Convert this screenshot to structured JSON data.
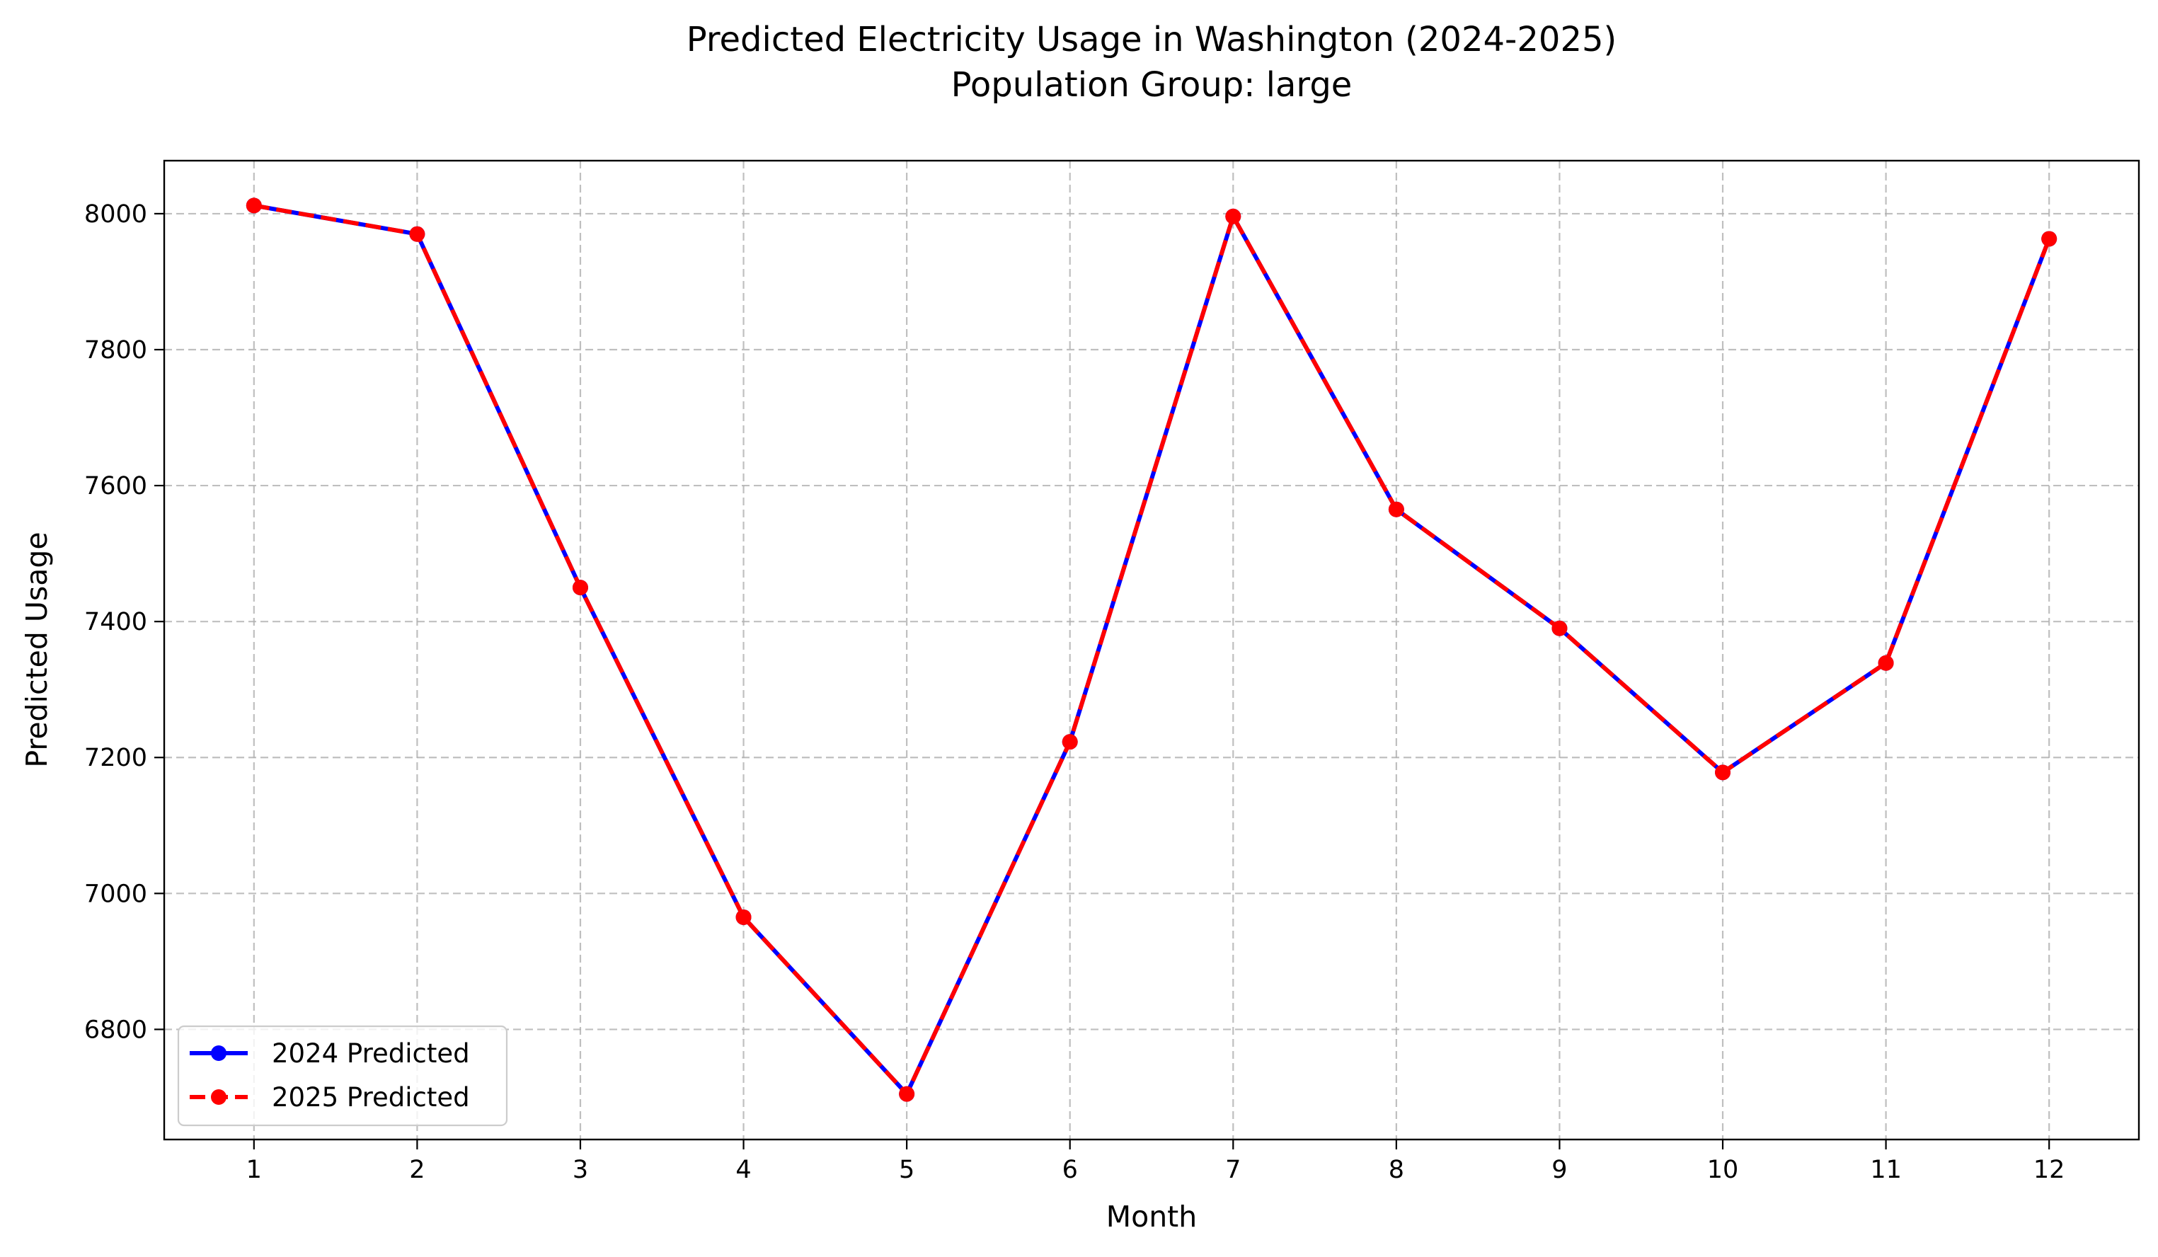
{
  "chart_data": {
    "type": "line",
    "title": [
      "Predicted Electricity Usage in Washington (2024-2025)",
      "Population Group: large"
    ],
    "xlabel": "Month",
    "ylabel": "Predicted Usage",
    "x": [
      1,
      2,
      3,
      4,
      5,
      6,
      7,
      8,
      9,
      10,
      11,
      12
    ],
    "xlim": [
      0.45,
      12.55
    ],
    "ylim": [
      6638,
      8078
    ],
    "yticks": [
      6800,
      7000,
      7200,
      7400,
      7600,
      7800,
      8000
    ],
    "grid": true,
    "legend_position": "lower-left",
    "series": [
      {
        "name": "2024 Predicted",
        "color": "#0000ff",
        "line_style": "solid",
        "values": [
          8012,
          7970,
          7450,
          6965,
          6705,
          7223,
          7996,
          7565,
          7390,
          7178,
          7339,
          7963
        ]
      },
      {
        "name": "2025 Predicted",
        "color": "#ff0000",
        "line_style": "dashed",
        "values": [
          8012,
          7970,
          7450,
          6965,
          6705,
          7223,
          7996,
          7565,
          7390,
          7178,
          7339,
          7963
        ]
      }
    ]
  }
}
